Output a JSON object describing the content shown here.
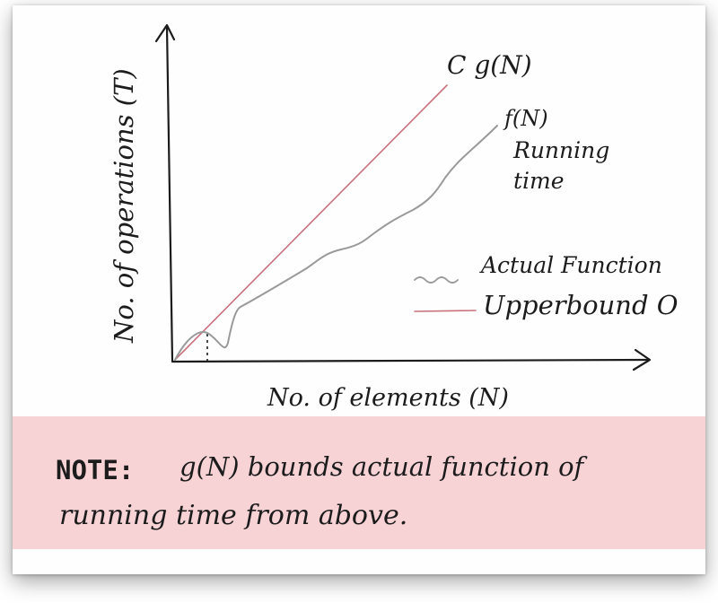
{
  "figure": {
    "y_axis_label": "No. of operations (T)",
    "x_axis_label": "No. of elements (N)",
    "upper_curve_label": "C g(N)",
    "actual_curve_label_1": "f(N)",
    "actual_curve_label_2": "Running",
    "actual_curve_label_3": "time",
    "legend": [
      {
        "label": "Actual Function",
        "color": "#9a9a9a"
      },
      {
        "label": "Upperbound O",
        "color": "#c9707c"
      }
    ]
  },
  "note": {
    "prefix": "NOTE:",
    "line1": "g(N) bounds actual function of",
    "line2": "running time from above."
  },
  "colors": {
    "upper": "#c9707c",
    "actual": "#9a9a9a",
    "ink": "#1c1c1c",
    "note_bg": "#f7d3d6"
  }
}
